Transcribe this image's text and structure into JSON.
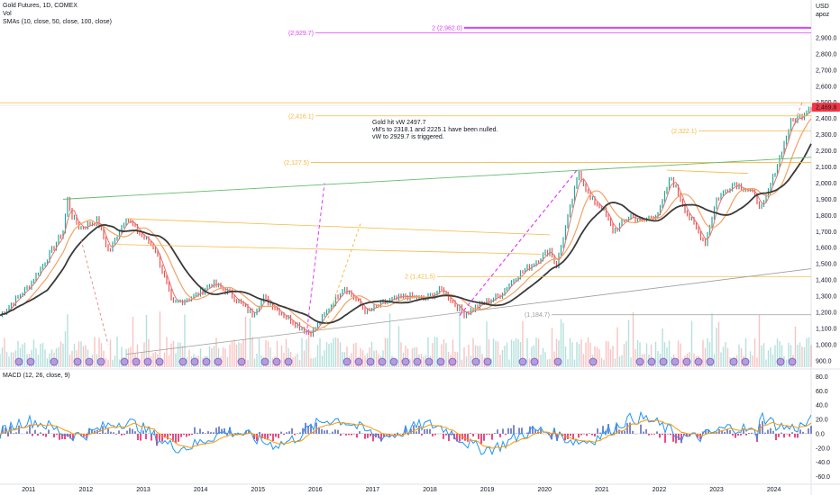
{
  "header": {
    "symbol_line": "Gold Futures, 1D, COMEX",
    "volume_label": "Vol",
    "sma_label": "SMAs (10, close, 50, close, 100, close)",
    "currency": "USD",
    "currency_sub": "apoz"
  },
  "annotation": {
    "line1": "Gold hit vW 2497.7",
    "line2": "vM's to 2318.1 and 2225.1 have been nulled.",
    "line3": "vW to 2929.7 is triggered."
  },
  "macd": {
    "label": "MACD (12, 26, close, 9)"
  },
  "colors": {
    "up": "#26a69a",
    "down": "#ef5350",
    "sma10": "#e57373",
    "sma50": "#f4a261",
    "sma100": "#3a3a3a",
    "magenta": "#e040fb",
    "orange": "#f5b942",
    "green": "#66bb6a",
    "grey": "#9e9e9e",
    "price_tag": "#f23645",
    "macd_line": "#2196f3",
    "signal_line": "#ff9800"
  },
  "levels": [
    {
      "label": "(2,929.7)",
      "value": 2929.7,
      "color": "#e040fb"
    },
    {
      "label": "2 (2,962.0)",
      "value": 2962.0,
      "color": "#e040fb"
    },
    {
      "label": "(2,497.7)",
      "value": 2497.7,
      "color": "#f5b942"
    },
    {
      "label": "(2,416.1)",
      "value": 2416.1,
      "color": "#f5b942"
    },
    {
      "label": "(2,322.1)",
      "value": 2322.1,
      "color": "#f5b942"
    },
    {
      "label": "(2,127.5)",
      "value": 2127.5,
      "color": "#f5b942"
    },
    {
      "label": "2 (1,421.5)",
      "value": 1421.5,
      "color": "#f5b942"
    },
    {
      "label": "(1,184.7)",
      "value": 1184.7,
      "color": "#9e9e9e"
    }
  ],
  "current_price": {
    "label": "2,469.8",
    "value": 2469.8
  },
  "chart_data": {
    "type": "line",
    "title": "Gold Futures, 1D, COMEX",
    "y_axis": {
      "ticks": [
        "2,900.0",
        "2,800.0",
        "2,700.0",
        "2,600.0",
        "2,500.0",
        "2,400.0",
        "2,300.0",
        "2,200.0",
        "2,100.0",
        "2,000.0",
        "1,900.0",
        "1,800.0",
        "1,700.0",
        "1,600.0",
        "1,500.0",
        "1,400.0",
        "1,300.0",
        "1,200.0",
        "1,100.0",
        "1,000.0",
        "900.0"
      ],
      "range": [
        860,
        3000
      ]
    },
    "macd_axis": {
      "ticks": [
        "80.0",
        "60.0",
        "40.0",
        "20.0",
        "0.0",
        "-20.0",
        "-40.0",
        "-60.0"
      ],
      "range": [
        -68,
        88
      ]
    },
    "x_axis": {
      "ticks": [
        "2011",
        "2012",
        "2013",
        "2014",
        "2015",
        "2016",
        "2017",
        "2018",
        "2019",
        "2020",
        "2021",
        "2022",
        "2023",
        "2024"
      ]
    },
    "series": [
      {
        "name": "Gold Futures",
        "x": [
          2010.5,
          2011.0,
          2011.3,
          2011.6,
          2011.68,
          2011.75,
          2011.9,
          2012.2,
          2012.4,
          2012.7,
          2012.9,
          2013.2,
          2013.4,
          2013.5,
          2013.9,
          2014.2,
          2014.5,
          2014.9,
          2015.1,
          2015.5,
          2015.9,
          2016.0,
          2016.5,
          2016.9,
          2017.2,
          2017.6,
          2017.9,
          2018.2,
          2018.6,
          2018.9,
          2019.2,
          2019.5,
          2019.8,
          2020.1,
          2020.2,
          2020.6,
          2020.8,
          2021.0,
          2021.2,
          2021.5,
          2021.7,
          2022.0,
          2022.2,
          2022.5,
          2022.8,
          2023.0,
          2023.3,
          2023.6,
          2023.8,
          2024.0,
          2024.3,
          2024.5,
          2024.6
        ],
        "values": [
          1180,
          1360,
          1520,
          1700,
          1900,
          1800,
          1720,
          1770,
          1570,
          1790,
          1700,
          1600,
          1380,
          1250,
          1300,
          1380,
          1320,
          1190,
          1290,
          1170,
          1070,
          1100,
          1360,
          1200,
          1260,
          1300,
          1280,
          1340,
          1190,
          1250,
          1300,
          1420,
          1500,
          1590,
          1480,
          2070,
          1900,
          1850,
          1700,
          1800,
          1760,
          1820,
          2040,
          1800,
          1630,
          1900,
          2000,
          1950,
          1840,
          2050,
          2380,
          2420,
          2469.8
        ]
      }
    ],
    "grid": false,
    "legend": "top-left"
  }
}
